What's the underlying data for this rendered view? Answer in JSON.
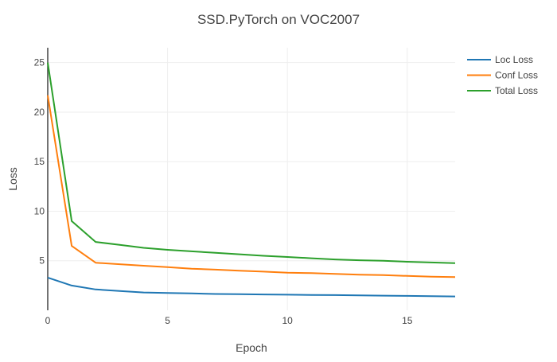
{
  "chart_data": {
    "type": "line",
    "title": "SSD.PyTorch on VOC2007",
    "xlabel": "Epoch",
    "ylabel": "Loss",
    "xlim": [
      0,
      17
    ],
    "ylim": [
      0,
      26.5
    ],
    "x_ticks": [
      0,
      5,
      10,
      15
    ],
    "y_ticks": [
      5,
      10,
      15,
      20,
      25
    ],
    "grid": true,
    "legend_position": "top-right",
    "x": [
      0,
      1,
      2,
      3,
      4,
      5,
      6,
      7,
      8,
      9,
      10,
      11,
      12,
      13,
      14,
      15,
      16,
      17
    ],
    "series": [
      {
        "name": "Loc Loss",
        "color": "#1f77b4",
        "values": [
          3.3,
          2.5,
          2.1,
          1.95,
          1.8,
          1.75,
          1.7,
          1.65,
          1.62,
          1.6,
          1.57,
          1.55,
          1.53,
          1.5,
          1.48,
          1.45,
          1.43,
          1.4
        ]
      },
      {
        "name": "Conf Loss",
        "color": "#ff7f0e",
        "values": [
          21.7,
          6.5,
          4.8,
          4.65,
          4.5,
          4.35,
          4.2,
          4.1,
          4.0,
          3.9,
          3.8,
          3.75,
          3.68,
          3.6,
          3.55,
          3.47,
          3.4,
          3.35
        ]
      },
      {
        "name": "Total Loss",
        "color": "#2ca02c",
        "values": [
          25.0,
          9.0,
          6.9,
          6.6,
          6.3,
          6.1,
          5.95,
          5.8,
          5.65,
          5.5,
          5.38,
          5.25,
          5.13,
          5.05,
          5.0,
          4.9,
          4.83,
          4.75
        ]
      }
    ]
  }
}
